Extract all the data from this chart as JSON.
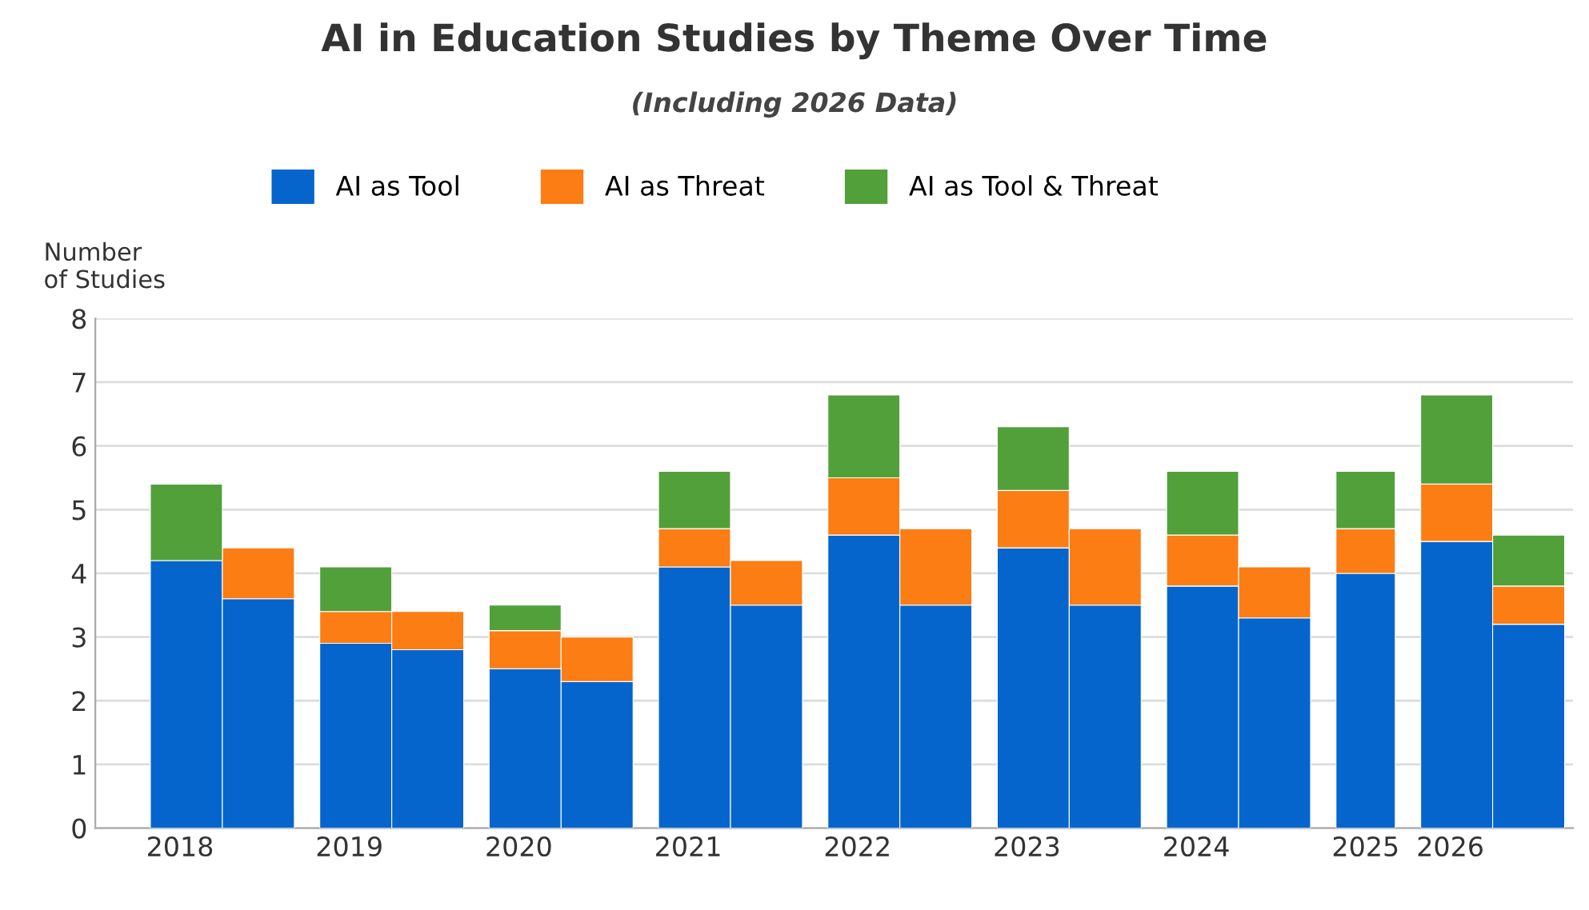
{
  "chart_data": {
    "type": "bar",
    "title": "AI in Education Studies by Theme Over Time",
    "subtitle": "(Including 2026 Data)",
    "ylabel": "Number\nof Studies",
    "categories": [
      "2018",
      null,
      "2019",
      null,
      "2020",
      null,
      "2021",
      null,
      "2022",
      null,
      "2023",
      null,
      "2024",
      null,
      "2025",
      "2026",
      null
    ],
    "series": [
      {
        "name": "AI as Tool",
        "color": "#0565cc",
        "values": [
          4.2,
          3.6,
          2.9,
          2.8,
          2.5,
          2.3,
          4.1,
          3.5,
          4.6,
          3.5,
          4.4,
          3.5,
          3.8,
          3.3,
          4.0,
          4.5,
          3.2
        ]
      },
      {
        "name": "AI as Threat",
        "color": "#fb7d14",
        "values": [
          null,
          0.8,
          0.5,
          0.6,
          0.6,
          0.7,
          0.6,
          0.7,
          0.9,
          1.2,
          0.9,
          1.2,
          0.8,
          0.8,
          0.7,
          0.9,
          0.6
        ]
      },
      {
        "name": "AI as Tool & Threat",
        "color": "#52a03a",
        "values": [
          1.2,
          null,
          0.7,
          null,
          0.4,
          null,
          0.9,
          null,
          1.3,
          null,
          1.0,
          null,
          1.0,
          null,
          0.9,
          1.4,
          0.8
        ]
      }
    ],
    "stacked": true,
    "ylim": [
      0,
      8
    ],
    "yticks": [
      0,
      1,
      2,
      3,
      4,
      5,
      6,
      7,
      8
    ],
    "grid": "y",
    "legend": "top"
  }
}
